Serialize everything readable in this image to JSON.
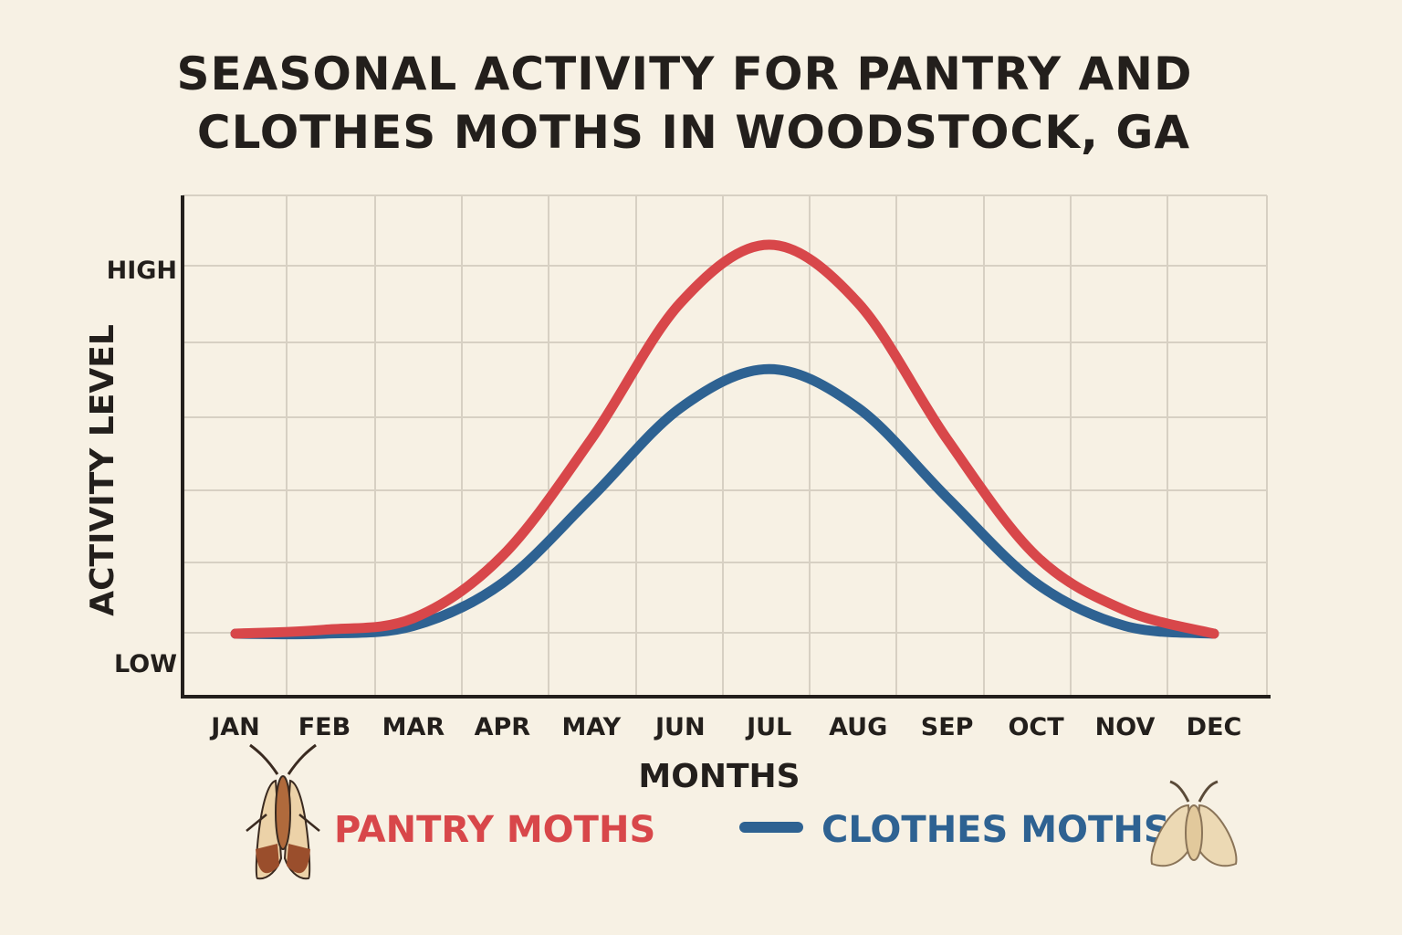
{
  "chart_data": {
    "type": "line",
    "title_lines": [
      "SEASONAL ACTIVITY FOR PANTRY AND",
      "CLOTHES MOTHS IN WOODSTOCK, GA"
    ],
    "xlabel": "MONTHS",
    "ylabel": "ACTIVITY LEVEL",
    "categories": [
      "JAN",
      "FEB",
      "MAR",
      "APR",
      "MAY",
      "JUN",
      "JUL",
      "AUG",
      "SEP",
      "OCT",
      "NOV",
      "DEC"
    ],
    "y_tick_labels": [
      "LOW",
      "HIGH"
    ],
    "ylim": [
      0,
      100
    ],
    "grid": true,
    "legend_position": "bottom",
    "series": [
      {
        "name": "PANTRY MOTHS",
        "color": "#d8474a",
        "icon": "pantry-moth-icon",
        "values": [
          0,
          1,
          4,
          20,
          50,
          85,
          100,
          85,
          50,
          20,
          6,
          0
        ]
      },
      {
        "name": "CLOTHES MOTHS",
        "color": "#2e6292",
        "icon": "clothes-moth-icon",
        "values": [
          0,
          0,
          2,
          13,
          35,
          58,
          68,
          58,
          35,
          13,
          2,
          0
        ]
      }
    ]
  }
}
